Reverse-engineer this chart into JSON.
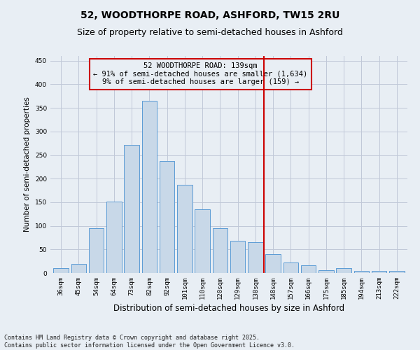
{
  "title": "52, WOODTHORPE ROAD, ASHFORD, TW15 2RU",
  "subtitle": "Size of property relative to semi-detached houses in Ashford",
  "xlabel": "Distribution of semi-detached houses by size in Ashford",
  "ylabel": "Number of semi-detached properties",
  "categories": [
    "36sqm",
    "45sqm",
    "54sqm",
    "64sqm",
    "73sqm",
    "82sqm",
    "92sqm",
    "101sqm",
    "110sqm",
    "120sqm",
    "129sqm",
    "138sqm",
    "148sqm",
    "157sqm",
    "166sqm",
    "175sqm",
    "185sqm",
    "194sqm",
    "213sqm",
    "222sqm"
  ],
  "values": [
    10,
    19,
    95,
    152,
    272,
    365,
    237,
    187,
    135,
    95,
    68,
    65,
    40,
    22,
    16,
    6,
    10,
    5,
    5,
    4
  ],
  "bar_color": "#c8d8e8",
  "bar_edge_color": "#5b9bd5",
  "vline_x": 11.5,
  "vline_color": "#cc0000",
  "annotation_box_text": "52 WOODTHORPE ROAD: 139sqm\n← 91% of semi-detached houses are smaller (1,634)\n9% of semi-detached houses are larger (159) →",
  "annotation_box_color": "#cc0000",
  "grid_color": "#c0c8d8",
  "background_color": "#e8eef4",
  "footer_text": "Contains HM Land Registry data © Crown copyright and database right 2025.\nContains public sector information licensed under the Open Government Licence v3.0.",
  "ylim": [
    0,
    460
  ],
  "yticks": [
    0,
    50,
    100,
    150,
    200,
    250,
    300,
    350,
    400,
    450
  ],
  "title_fontsize": 10,
  "subtitle_fontsize": 9,
  "xlabel_fontsize": 8.5,
  "ylabel_fontsize": 7.5,
  "tick_fontsize": 6.5,
  "footer_fontsize": 6.0,
  "annot_fontsize": 7.5
}
